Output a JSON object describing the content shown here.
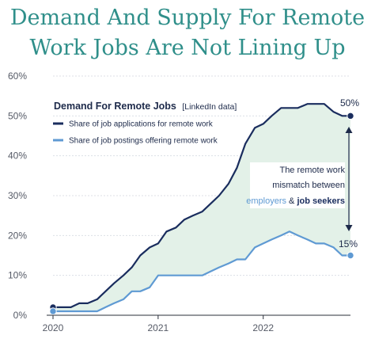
{
  "title_line1": "Demand And Supply For Remote",
  "title_line2": "Work Jobs Are Not Lining Up",
  "colors": {
    "title": "#2f8f8a",
    "applications": "#1a2d5e",
    "postings": "#5f9ad3",
    "gap_fill": "#e3f1e8"
  },
  "chart_data": {
    "type": "line",
    "title": "Demand And Supply For Remote Work Jobs Are Not Lining Up",
    "legend_title": "Demand For Remote Jobs",
    "legend_source": "[LinkedIn data]",
    "legend_position": "top-left",
    "grid": true,
    "ylim": [
      0,
      60
    ],
    "y_ticks": [
      "0%",
      "10%",
      "20%",
      "30%",
      "40%",
      "50%",
      "60%"
    ],
    "x_ticks": [
      "2020",
      "2021",
      "2022"
    ],
    "x_range": [
      2020.0,
      2022.83
    ],
    "series": [
      {
        "name": "Share of job applications for remote work",
        "end_label": "50%",
        "x": [
          2020.0,
          2020.08,
          2020.17,
          2020.25,
          2020.33,
          2020.42,
          2020.5,
          2020.58,
          2020.67,
          2020.75,
          2020.83,
          2020.92,
          2021.0,
          2021.08,
          2021.17,
          2021.25,
          2021.33,
          2021.42,
          2021.5,
          2021.58,
          2021.67,
          2021.75,
          2021.83,
          2021.92,
          2022.0,
          2022.08,
          2022.17,
          2022.25,
          2022.33,
          2022.42,
          2022.5,
          2022.58,
          2022.67,
          2022.75,
          2022.83
        ],
        "values": [
          2,
          2,
          2,
          3,
          3,
          4,
          6,
          8,
          10,
          12,
          15,
          17,
          18,
          21,
          22,
          24,
          25,
          26,
          28,
          30,
          33,
          37,
          43,
          47,
          48,
          50,
          52,
          52,
          52,
          53,
          53,
          53,
          51,
          50,
          50
        ]
      },
      {
        "name": "Share of job postings offering remote work",
        "end_label": "15%",
        "x": [
          2020.0,
          2020.08,
          2020.17,
          2020.25,
          2020.33,
          2020.42,
          2020.5,
          2020.58,
          2020.67,
          2020.75,
          2020.83,
          2020.92,
          2021.0,
          2021.08,
          2021.17,
          2021.25,
          2021.33,
          2021.42,
          2021.5,
          2021.58,
          2021.67,
          2021.75,
          2021.83,
          2021.92,
          2022.0,
          2022.08,
          2022.17,
          2022.25,
          2022.33,
          2022.42,
          2022.5,
          2022.58,
          2022.67,
          2022.75,
          2022.83
        ],
        "values": [
          1,
          1,
          1,
          1,
          1,
          1,
          2,
          3,
          4,
          6,
          6,
          7,
          10,
          10,
          10,
          10,
          10,
          10,
          11,
          12,
          13,
          14,
          14,
          17,
          18,
          19,
          20,
          21,
          20,
          19,
          18,
          18,
          17,
          15,
          15
        ]
      }
    ],
    "annotation": {
      "line1": "The remote work",
      "line2": "mismatch between",
      "employers": "employers",
      "amp": " & ",
      "job_seekers": "job seekers"
    }
  }
}
